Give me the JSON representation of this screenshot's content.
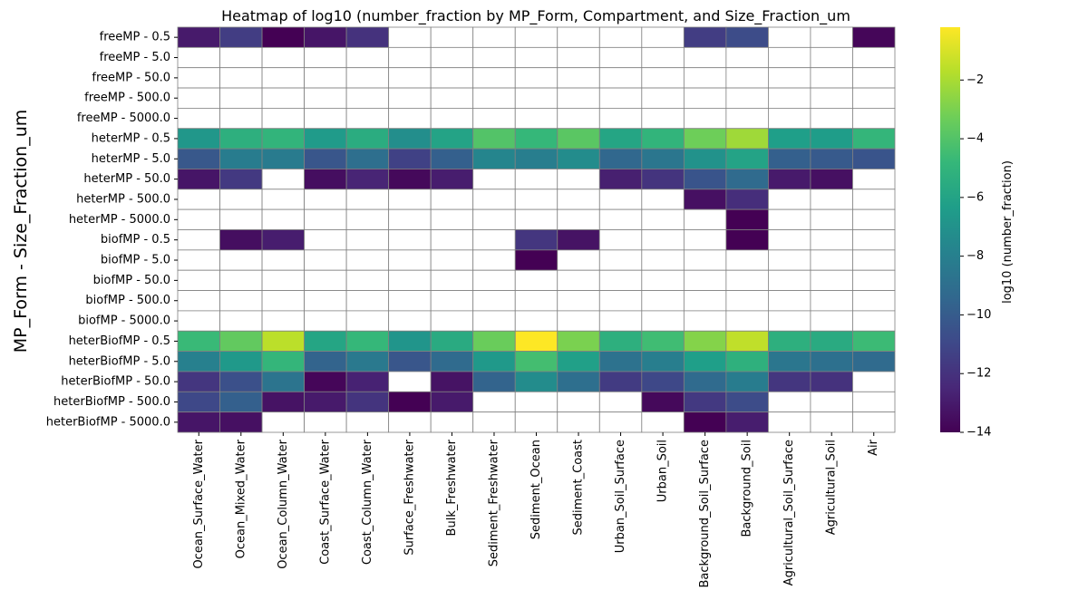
{
  "chart_data": {
    "type": "heatmap",
    "title": "Heatmap of log10 (number_fraction by MP_Form, Compartment, and Size_Fraction_um",
    "xlabel": "",
    "ylabel": "MP_Form - Size_Fraction_um",
    "colorbar_label": "log10 (number_fraction)",
    "colormap": "viridis",
    "vmin": -14,
    "vmax": -0.2,
    "colorbar_ticks": [
      -2,
      -4,
      -6,
      -8,
      -10,
      -12,
      -14
    ],
    "colorbar_tick_labels": [
      "−2",
      "−4",
      "−6",
      "−8",
      "−10",
      "−12",
      "−14"
    ],
    "empty_cell_color": "#ffffff",
    "gridline_color": "#808080",
    "columns": [
      "Ocean_Surface_Water",
      "Ocean_Mixed_Water",
      "Ocean_Column_Water",
      "Coast_Surface_Water",
      "Coast_Column_Water",
      "Surface_Freshwater",
      "Bulk_Freshwater",
      "Sediment_Freshwater",
      "Sediment_Ocean",
      "Sediment_Coast",
      "Urban_Soil_Surface",
      "Urban_Soil",
      "Background_Soil_Surface",
      "Background_Soil",
      "Agricultural_Soil_Surface",
      "Agricultural_Soil",
      "Air"
    ],
    "rows": [
      "freeMP - 0.5",
      "freeMP - 5.0",
      "freeMP - 50.0",
      "freeMP - 500.0",
      "freeMP - 5000.0",
      "heterMP - 0.5",
      "heterMP - 5.0",
      "heterMP - 50.0",
      "heterMP - 500.0",
      "heterMP - 5000.0",
      "biofMP - 0.5",
      "biofMP - 5.0",
      "biofMP - 50.0",
      "biofMP - 500.0",
      "biofMP - 5000.0",
      "heterBiofMP - 0.5",
      "heterBiofMP - 5.0",
      "heterBiofMP - 50.0",
      "heterBiofMP - 500.0",
      "heterBiofMP - 5000.0"
    ],
    "values": [
      [
        -13.0,
        -11.5,
        -14.0,
        -13.2,
        -12.0,
        null,
        null,
        null,
        null,
        null,
        null,
        null,
        -11.5,
        -10.8,
        null,
        null,
        -13.8
      ],
      [
        null,
        null,
        null,
        null,
        null,
        null,
        null,
        null,
        null,
        null,
        null,
        null,
        null,
        null,
        null,
        null,
        null
      ],
      [
        null,
        null,
        null,
        null,
        null,
        null,
        null,
        null,
        null,
        null,
        null,
        null,
        null,
        null,
        null,
        null,
        null
      ],
      [
        null,
        null,
        null,
        null,
        null,
        null,
        null,
        null,
        null,
        null,
        null,
        null,
        null,
        null,
        null,
        null,
        null
      ],
      [
        null,
        null,
        null,
        null,
        null,
        null,
        null,
        null,
        null,
        null,
        null,
        null,
        null,
        null,
        null,
        null,
        null
      ],
      [
        -6.7,
        -5.3,
        -5.0,
        -6.5,
        -5.5,
        -7.2,
        -6.0,
        -4.0,
        -4.8,
        -3.8,
        -5.9,
        -5.0,
        -3.3,
        -2.2,
        -6.3,
        -6.4,
        -4.9
      ],
      [
        -10.2,
        -8.2,
        -8.3,
        -10.3,
        -9.0,
        -11.3,
        -9.8,
        -7.7,
        -8.1,
        -7.3,
        -9.4,
        -8.6,
        -7.0,
        -6.0,
        -9.8,
        -10.1,
        -10.4
      ],
      [
        -13.2,
        -11.7,
        null,
        -13.5,
        -12.6,
        -13.7,
        -12.9,
        null,
        null,
        null,
        -12.8,
        -11.9,
        -10.4,
        -9.2,
        -13.0,
        -13.4,
        null
      ],
      [
        null,
        null,
        null,
        null,
        null,
        null,
        null,
        null,
        null,
        null,
        null,
        null,
        -13.4,
        -12.2,
        null,
        null,
        null
      ],
      [
        null,
        null,
        null,
        null,
        null,
        null,
        null,
        null,
        null,
        null,
        null,
        null,
        null,
        -14.0,
        null,
        null,
        null
      ],
      [
        null,
        -13.5,
        -12.9,
        null,
        null,
        null,
        null,
        null,
        -11.8,
        -13.3,
        null,
        null,
        null,
        -14.0,
        null,
        null,
        null
      ],
      [
        null,
        null,
        null,
        null,
        null,
        null,
        null,
        null,
        -14.2,
        null,
        null,
        null,
        null,
        null,
        null,
        null,
        null
      ],
      [
        null,
        null,
        null,
        null,
        null,
        null,
        null,
        null,
        null,
        null,
        null,
        null,
        null,
        null,
        null,
        null,
        null
      ],
      [
        null,
        null,
        null,
        null,
        null,
        null,
        null,
        null,
        null,
        null,
        null,
        null,
        null,
        null,
        null,
        null,
        null
      ],
      [
        null,
        null,
        null,
        null,
        null,
        null,
        null,
        null,
        null,
        null,
        null,
        null,
        null,
        null,
        null,
        null,
        null
      ],
      [
        -4.7,
        -3.6,
        -1.6,
        -5.9,
        -4.8,
        -6.8,
        -5.6,
        -3.4,
        -0.2,
        -3.0,
        -5.3,
        -4.5,
        -2.8,
        -1.5,
        -5.3,
        -5.6,
        -4.6
      ],
      [
        -8.0,
        -6.6,
        -4.9,
        -9.6,
        -8.4,
        -10.3,
        -9.2,
        -6.6,
        -4.4,
        -6.2,
        -8.8,
        -8.1,
        -6.3,
        -5.2,
        -8.6,
        -8.9,
        -9.2
      ],
      [
        -11.8,
        -10.6,
        -8.7,
        -13.8,
        -12.7,
        null,
        -13.3,
        -9.6,
        -7.3,
        -9.0,
        -11.6,
        -11.0,
        -9.2,
        -8.2,
        -11.8,
        -12.0,
        null
      ],
      [
        -11.0,
        -9.8,
        -13.3,
        -13.0,
        -11.9,
        -14.2,
        -13.0,
        null,
        null,
        null,
        null,
        -13.7,
        -11.7,
        -10.8,
        null,
        null,
        null
      ],
      [
        -13.2,
        -13.4,
        null,
        null,
        null,
        null,
        null,
        null,
        null,
        null,
        null,
        null,
        -14.2,
        -12.9,
        null,
        null,
        null
      ]
    ]
  }
}
